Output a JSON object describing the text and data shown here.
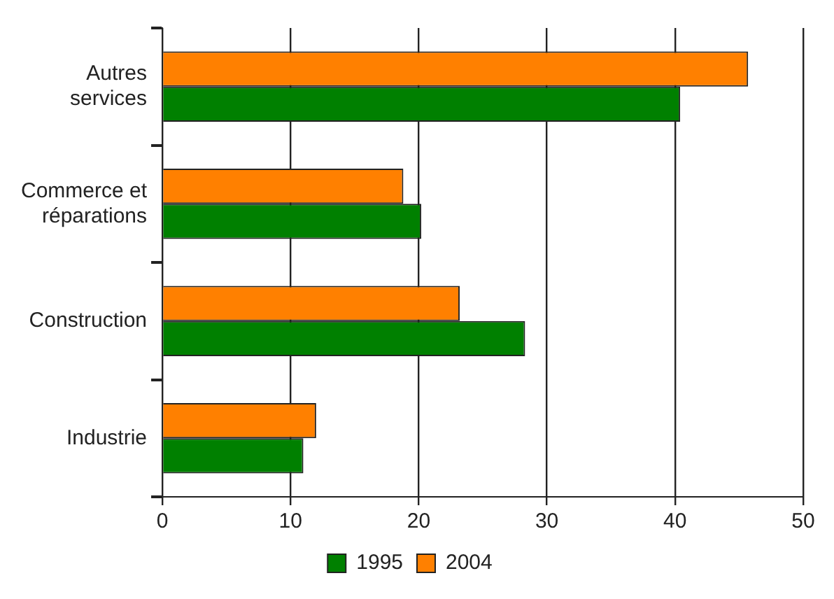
{
  "chart_data": {
    "type": "bar",
    "orientation": "horizontal",
    "categories": [
      "Autres services",
      "Commerce et réparations",
      "Construction",
      "Industrie"
    ],
    "series": [
      {
        "name": "1995",
        "color": "#008000",
        "values": [
          40.4,
          20.2,
          28.3,
          11.0
        ]
      },
      {
        "name": "2004",
        "color": "#ff8000",
        "values": [
          45.7,
          18.8,
          23.2,
          12.0
        ]
      }
    ],
    "xlim": [
      0,
      50
    ],
    "xticks": [
      0,
      10,
      20,
      30,
      40,
      50
    ],
    "grid": "x",
    "legend": "bottom"
  }
}
